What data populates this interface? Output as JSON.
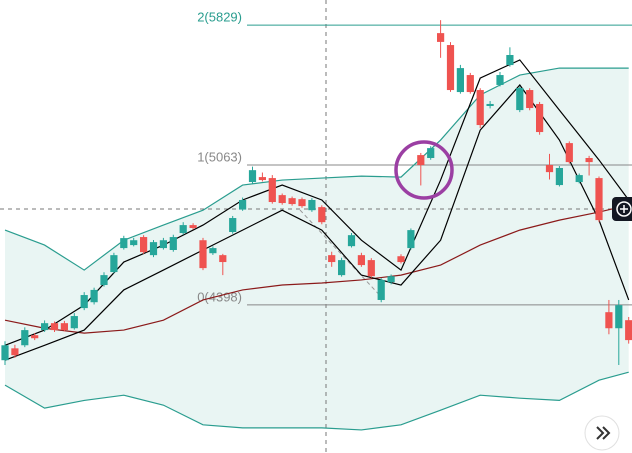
{
  "chart_data": {
    "type": "candlestick",
    "log": true,
    "ylim": [
      3789,
      5978
    ],
    "up_color": "#26a69a",
    "down_color": "#ef5350",
    "open": [
      4160,
      4210,
      4223,
      4266,
      4288,
      4318,
      4318,
      4296,
      4384,
      4410,
      4487,
      4546,
      4657,
      4671,
      4709,
      4624,
      4657,
      4648,
      4728,
      4766,
      4694,
      4633,
      4624,
      4733,
      4841,
      4977,
      5002,
      4997,
      4912,
      4897,
      4892,
      4838,
      4853,
      4624,
      4532,
      4666,
      4624,
      4601,
      4420,
      4500,
      4619,
      4657,
      5114,
      5099,
      5782,
      5713,
      5449,
      5543,
      5460,
      5373,
      5488,
      5599,
      5351,
      5460,
      5384,
      5063,
      4962,
      5176,
      4977,
      5099,
      4997,
      4366,
      4296,
      4331
    ],
    "high": [
      4240,
      4225,
      4300,
      4275,
      4330,
      4325,
      4328,
      4362,
      4455,
      4475,
      4545,
      4635,
      4715,
      4705,
      4718,
      4695,
      4705,
      4720,
      4780,
      4775,
      4705,
      4665,
      4630,
      4810,
      4900,
      5055,
      5025,
      5012,
      4920,
      4905,
      4900,
      4897,
      4862,
      4640,
      4612,
      4728,
      4635,
      4610,
      4518,
      4535,
      4628,
      4750,
      5125,
      5160,
      5858,
      5730,
      5600,
      5555,
      5470,
      5400,
      5560,
      5700,
      5480,
      5470,
      5395,
      5120,
      5058,
      5185,
      5020,
      5110,
      5005,
      4420,
      4420,
      4345
    ],
    "low": [
      4140,
      4170,
      4215,
      4245,
      4280,
      4280,
      4282,
      4290,
      4375,
      4400,
      4480,
      4540,
      4650,
      4665,
      4630,
      4615,
      4650,
      4640,
      4720,
      4745,
      4555,
      4625,
      4532,
      4725,
      4835,
      4970,
      4980,
      4870,
      4865,
      4860,
      4850,
      4830,
      4770,
      4570,
      4525,
      4660,
      4570,
      4520,
      4410,
      4490,
      4585,
      4650,
      4960,
      5090,
      5640,
      5450,
      5440,
      5440,
      5255,
      5360,
      5480,
      5590,
      5340,
      5350,
      5220,
      4990,
      4955,
      5070,
      4970,
      5010,
      4780,
      4270,
      4140,
      4230
    ],
    "close": [
      4223,
      4181,
      4288,
      4253,
      4318,
      4288,
      4288,
      4349,
      4442,
      4465,
      4532,
      4624,
      4704,
      4694,
      4638,
      4685,
      4694,
      4709,
      4766,
      4752,
      4564,
      4657,
      4592,
      4800,
      4888,
      5037,
      4987,
      4878,
      4873,
      4868,
      4858,
      4888,
      4780,
      4592,
      4601,
      4718,
      4578,
      4527,
      4510,
      4527,
      4592,
      4742,
      5063,
      5150,
      5731,
      5460,
      5582,
      5449,
      5271,
      5384,
      5543,
      5656,
      5471,
      5362,
      5234,
      5027,
      5048,
      5078,
      5012,
      5078,
      4790,
      4296,
      4397,
      4245
    ],
    "lines": [
      {
        "color": "#2a9d8f",
        "x": [
          0,
          4,
          8,
          12,
          16,
          20,
          24,
          28,
          32,
          36,
          40,
          44,
          48,
          52,
          56,
          60,
          63
        ],
        "values": [
          4742,
          4671,
          4555,
          4694,
          4766,
          4838,
          4962,
          4987,
          4997,
          5007,
          5002,
          5192,
          5433,
          5543,
          5582,
          5582,
          5582
        ]
      },
      {
        "color": "#2a9d8f",
        "x": [
          0,
          4,
          8,
          12,
          16,
          20,
          24,
          28,
          32,
          36,
          40,
          44,
          48,
          52,
          56,
          60,
          63
        ],
        "values": [
          4057,
          3964,
          3995,
          4016,
          3976,
          3898,
          3886,
          3886,
          3886,
          3878,
          3898,
          3956,
          4016,
          4004,
          3995,
          4077,
          4110
        ]
      },
      {
        "color": "#8b1a1a",
        "x": [
          0,
          4,
          8,
          12,
          16,
          20,
          24,
          28,
          32,
          36,
          40,
          44,
          48,
          52,
          56,
          60,
          63
        ],
        "values": [
          4331,
          4296,
          4275,
          4288,
          4331,
          4420,
          4465,
          4487,
          4496,
          4510,
          4532,
          4578,
          4671,
          4742,
          4790,
          4829,
          4863
        ]
      },
      {
        "color": "#000000",
        "x": [
          0,
          4,
          8,
          12,
          16,
          20,
          24,
          28,
          32,
          36,
          40,
          44,
          48,
          52,
          56,
          60,
          63
        ],
        "values": [
          4223,
          4288,
          4397,
          4592,
          4671,
          4766,
          4888,
          4962,
          4888,
          4694,
          4555,
          4987,
          5526,
          5628,
          5351,
          5089,
          4888
        ]
      },
      {
        "color": "#000000",
        "x": [
          0,
          4,
          8,
          12,
          16,
          20,
          24,
          28,
          32,
          36,
          40,
          44,
          48,
          52,
          56,
          60,
          63
        ],
        "values": [
          4160,
          4223,
          4288,
          4465,
          4555,
          4648,
          4742,
          4838,
          4742,
          4532,
          4487,
          4694,
          5244,
          5488,
          5192,
          4790,
          4420
        ]
      }
    ],
    "fib_levels": [
      {
        "value": 5829,
        "label": "2(5829)",
        "color": "#2a9d8f"
      },
      {
        "value": 5063,
        "label": "1(5063)",
        "color": "#888888"
      },
      {
        "value": 4398,
        "label": "0(4398)",
        "color": "#888888"
      }
    ]
  }
}
